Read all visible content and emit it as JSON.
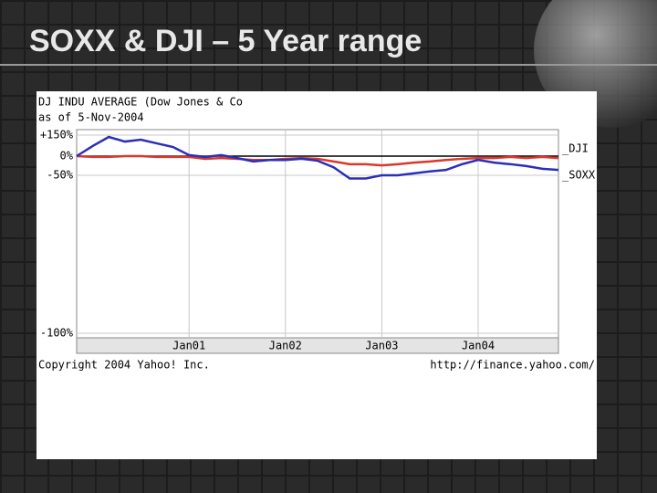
{
  "slide_title": "SOXX & DJI – 5 Year range",
  "chart_data": {
    "type": "line",
    "title": "DJ INDU AVERAGE (Dow Jones & Co",
    "subtitle": "as of  5-Nov-2004",
    "categories": [
      null,
      null,
      null,
      null,
      null,
      null,
      null,
      "Jan01",
      null,
      null,
      null,
      null,
      null,
      "Jan02",
      null,
      null,
      null,
      null,
      null,
      "Jan03",
      null,
      null,
      null,
      null,
      null,
      "Jan04",
      null,
      null,
      null,
      null,
      null
    ],
    "series": [
      {
        "name": "_DJI",
        "color": "#d9382c",
        "values": [
          0,
          -2,
          -2,
          0,
          0,
          -2,
          -2,
          -2,
          -7,
          -5,
          -7,
          -10,
          -10,
          -7,
          -5,
          -7,
          -14,
          -21,
          -21,
          -24,
          -21,
          -17,
          -14,
          -10,
          -7,
          -5,
          -5,
          -2,
          -5,
          -2,
          -5
        ]
      },
      {
        "name": "_SOXX",
        "color": "#2b2fb8",
        "values": [
          0,
          72,
          137,
          104,
          117,
          91,
          65,
          7,
          -2,
          7,
          -5,
          -14,
          -10,
          -10,
          -7,
          -12,
          -29,
          -51,
          -51,
          -50,
          -50,
          -45,
          -40,
          -36,
          -21,
          -10,
          -17,
          -21,
          -26,
          -33,
          -36
        ]
      }
    ],
    "ylim": [
      -100,
      150
    ],
    "yticks": [
      {
        "value": -100,
        "label": "-100%"
      },
      {
        "value": -50,
        "label": "-50%"
      },
      {
        "value": 0,
        "label": "0%"
      },
      {
        "value": 150,
        "label": "+150%"
      }
    ],
    "copyright": "Copyright 2004 Yahoo! Inc.",
    "source": "http://finance.yahoo.com/"
  }
}
